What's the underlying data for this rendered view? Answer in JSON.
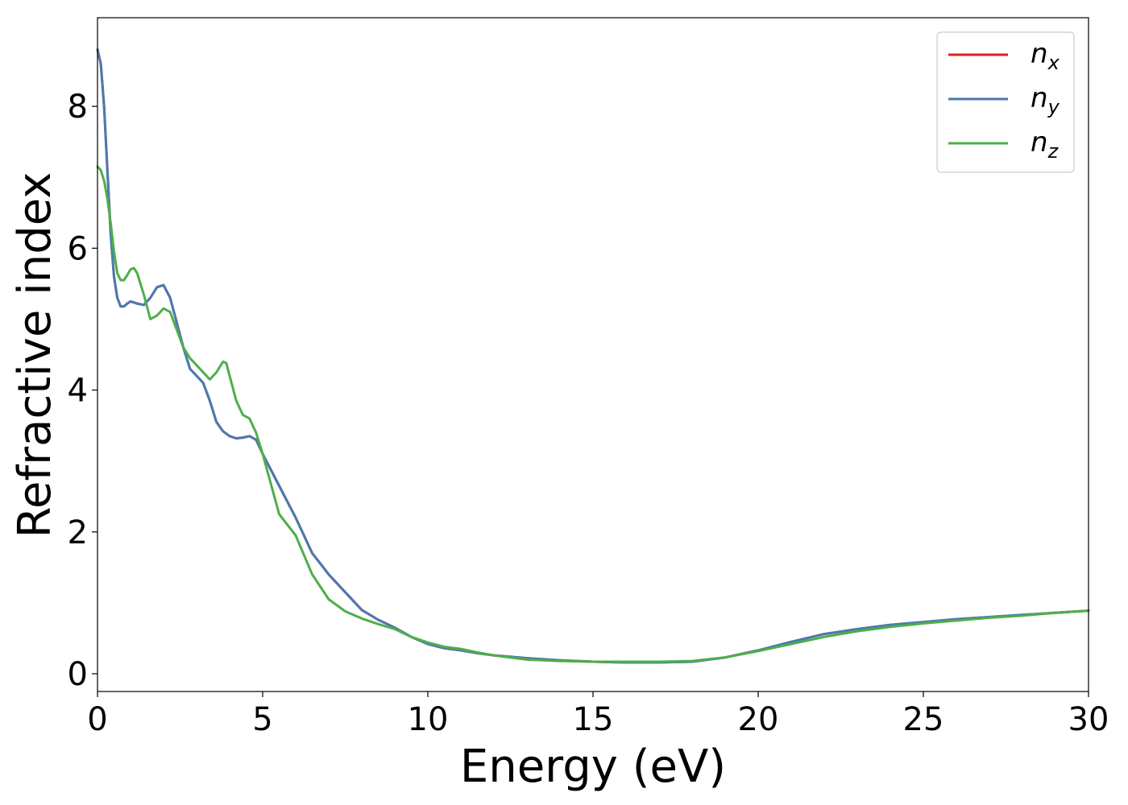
{
  "chart_data": {
    "type": "line",
    "xlabel": "Energy (eV)",
    "ylabel": "Refractive index",
    "xlim": [
      0,
      30
    ],
    "ylim": [
      -0.25,
      9.25
    ],
    "xticks": [
      "0",
      "5",
      "10",
      "15",
      "20",
      "25",
      "30"
    ],
    "yticks": [
      "0",
      "2",
      "4",
      "6",
      "8"
    ],
    "grid": false,
    "legend_position": "top-right",
    "series": [
      {
        "name": "n_x",
        "legend_base": "n",
        "legend_sub": "x",
        "color": "#e41a1c",
        "x": [
          0,
          0.1,
          0.2,
          0.3,
          0.4,
          0.5,
          0.6,
          0.7,
          0.8,
          0.9,
          1.0,
          1.2,
          1.4,
          1.6,
          1.8,
          2.0,
          2.2,
          2.4,
          2.6,
          2.8,
          3.0,
          3.2,
          3.4,
          3.6,
          3.8,
          4.0,
          4.2,
          4.4,
          4.6,
          4.8,
          5.0,
          5.5,
          6.0,
          6.5,
          7.0,
          7.5,
          8.0,
          8.5,
          9.0,
          9.5,
          10.0,
          10.5,
          11.0,
          11.5,
          12.0,
          13.0,
          14.0,
          15.0,
          16.0,
          17.0,
          18.0,
          19.0,
          20.0,
          21.0,
          22.0,
          23.0,
          24.0,
          25.0,
          26.0,
          27.0,
          28.0,
          29.0,
          30.0
        ],
        "values": [
          8.8,
          8.6,
          8.0,
          7.1,
          6.2,
          5.6,
          5.3,
          5.18,
          5.18,
          5.22,
          5.25,
          5.22,
          5.2,
          5.3,
          5.45,
          5.48,
          5.3,
          4.95,
          4.6,
          4.3,
          4.2,
          4.1,
          3.85,
          3.55,
          3.42,
          3.35,
          3.32,
          3.33,
          3.35,
          3.3,
          3.1,
          2.65,
          2.2,
          1.7,
          1.4,
          1.15,
          0.9,
          0.76,
          0.65,
          0.52,
          0.42,
          0.36,
          0.33,
          0.29,
          0.26,
          0.22,
          0.19,
          0.17,
          0.16,
          0.16,
          0.17,
          0.23,
          0.33,
          0.45,
          0.56,
          0.63,
          0.69,
          0.73,
          0.77,
          0.8,
          0.83,
          0.86,
          0.89
        ]
      },
      {
        "name": "n_y",
        "legend_base": "n",
        "legend_sub": "y",
        "color": "#4a7ab0",
        "x": [
          0,
          0.1,
          0.2,
          0.3,
          0.4,
          0.5,
          0.6,
          0.7,
          0.8,
          0.9,
          1.0,
          1.2,
          1.4,
          1.6,
          1.8,
          2.0,
          2.2,
          2.4,
          2.6,
          2.8,
          3.0,
          3.2,
          3.4,
          3.6,
          3.8,
          4.0,
          4.2,
          4.4,
          4.6,
          4.8,
          5.0,
          5.5,
          6.0,
          6.5,
          7.0,
          7.5,
          8.0,
          8.5,
          9.0,
          9.5,
          10.0,
          10.5,
          11.0,
          11.5,
          12.0,
          13.0,
          14.0,
          15.0,
          16.0,
          17.0,
          18.0,
          19.0,
          20.0,
          21.0,
          22.0,
          23.0,
          24.0,
          25.0,
          26.0,
          27.0,
          28.0,
          29.0,
          30.0
        ],
        "values": [
          8.8,
          8.6,
          8.0,
          7.1,
          6.2,
          5.6,
          5.3,
          5.18,
          5.18,
          5.22,
          5.25,
          5.22,
          5.2,
          5.3,
          5.45,
          5.48,
          5.3,
          4.95,
          4.6,
          4.3,
          4.2,
          4.1,
          3.85,
          3.55,
          3.42,
          3.35,
          3.32,
          3.33,
          3.35,
          3.3,
          3.1,
          2.65,
          2.2,
          1.7,
          1.4,
          1.15,
          0.9,
          0.76,
          0.65,
          0.52,
          0.42,
          0.36,
          0.33,
          0.29,
          0.26,
          0.22,
          0.19,
          0.17,
          0.16,
          0.16,
          0.17,
          0.23,
          0.33,
          0.45,
          0.56,
          0.63,
          0.69,
          0.73,
          0.77,
          0.8,
          0.83,
          0.86,
          0.89
        ]
      },
      {
        "name": "n_z",
        "legend_base": "n",
        "legend_sub": "z",
        "color": "#4daf4a",
        "x": [
          0,
          0.1,
          0.2,
          0.3,
          0.4,
          0.5,
          0.6,
          0.7,
          0.8,
          0.9,
          1.0,
          1.1,
          1.2,
          1.4,
          1.6,
          1.8,
          2.0,
          2.2,
          2.4,
          2.6,
          2.8,
          3.0,
          3.2,
          3.4,
          3.6,
          3.8,
          3.9,
          4.0,
          4.2,
          4.4,
          4.6,
          4.8,
          5.0,
          5.5,
          6.0,
          6.5,
          7.0,
          7.5,
          8.0,
          8.5,
          9.0,
          9.5,
          10.0,
          10.5,
          11.0,
          11.5,
          12.0,
          13.0,
          14.0,
          15.0,
          16.0,
          17.0,
          18.0,
          19.0,
          20.0,
          21.0,
          22.0,
          23.0,
          24.0,
          25.0,
          26.0,
          27.0,
          28.0,
          29.0,
          30.0
        ],
        "values": [
          7.15,
          7.1,
          6.95,
          6.7,
          6.35,
          5.95,
          5.65,
          5.55,
          5.55,
          5.62,
          5.7,
          5.72,
          5.65,
          5.35,
          5.0,
          5.05,
          5.15,
          5.1,
          4.85,
          4.6,
          4.45,
          4.35,
          4.25,
          4.15,
          4.25,
          4.4,
          4.38,
          4.2,
          3.85,
          3.65,
          3.6,
          3.4,
          3.1,
          2.25,
          1.95,
          1.4,
          1.05,
          0.88,
          0.78,
          0.7,
          0.63,
          0.52,
          0.44,
          0.38,
          0.35,
          0.3,
          0.26,
          0.2,
          0.18,
          0.17,
          0.17,
          0.17,
          0.18,
          0.23,
          0.32,
          0.42,
          0.52,
          0.6,
          0.66,
          0.71,
          0.75,
          0.79,
          0.82,
          0.86,
          0.89
        ]
      }
    ]
  }
}
